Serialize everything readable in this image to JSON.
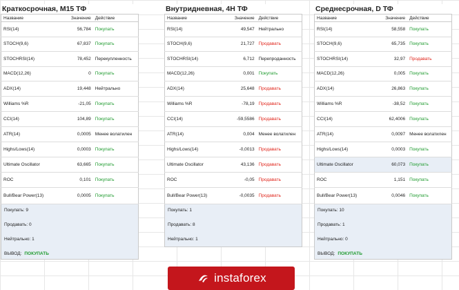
{
  "columns": {
    "name": "Название",
    "value": "Значение",
    "action": "Действие"
  },
  "panels": [
    {
      "title": "Краткосрочная, M15 ТФ",
      "rows": [
        {
          "name": "RSI(14)",
          "value": "56,784",
          "action": "Покупать",
          "kind": "buy"
        },
        {
          "name": "STOCH(9,6)",
          "value": "67,837",
          "action": "Покупать",
          "kind": "buy"
        },
        {
          "name": "STOCHRSI(14)",
          "value": "78,452",
          "action": "Перекупленность",
          "kind": "neutral"
        },
        {
          "name": "MACD(12,26)",
          "value": "0",
          "action": "Покупать",
          "kind": "buy"
        },
        {
          "name": "ADX(14)",
          "value": "19,448",
          "action": "Нейтрально",
          "kind": "neutral"
        },
        {
          "name": "Williams %R",
          "value": "-21,05",
          "action": "Покупать",
          "kind": "buy"
        },
        {
          "name": "CCI(14)",
          "value": "104,89",
          "action": "Покупать",
          "kind": "buy"
        },
        {
          "name": "ATR(14)",
          "value": "0,0005",
          "action": "Менее волатилен",
          "kind": "neutral"
        },
        {
          "name": "Highs/Lows(14)",
          "value": "0,0003",
          "action": "Покупать",
          "kind": "buy"
        },
        {
          "name": "Ultimate Oscillator",
          "value": "63,665",
          "action": "Покупать",
          "kind": "buy"
        },
        {
          "name": "ROC",
          "value": "0,101",
          "action": "Покупать",
          "kind": "buy"
        },
        {
          "name": "Bull/Bear Power(13)",
          "value": "0,0005",
          "action": "Покупать",
          "kind": "buy"
        }
      ],
      "buy": "Покупать: 9",
      "sell": "Продавать: 0",
      "neutral": "Нейтрально: 1",
      "verdict_label": "ВЫВОД:",
      "verdict": "ПОКУПАТЬ"
    },
    {
      "title": "Внутридневная, 4H ТФ",
      "rows": [
        {
          "name": "RSI(14)",
          "value": "49,547",
          "action": "Нейтрально",
          "kind": "neutral"
        },
        {
          "name": "STOCH(9,6)",
          "value": "21,727",
          "action": "Продавать",
          "kind": "sell"
        },
        {
          "name": "STOCHRSI(14)",
          "value": "6,712",
          "action": "Перепроданность",
          "kind": "neutral"
        },
        {
          "name": "MACD(12,26)",
          "value": "0,001",
          "action": "Покупать",
          "kind": "buy"
        },
        {
          "name": "ADX(14)",
          "value": "25,648",
          "action": "Продавать",
          "kind": "sell"
        },
        {
          "name": "Williams %R",
          "value": "-78,19",
          "action": "Продавать",
          "kind": "sell"
        },
        {
          "name": "CCI(14)",
          "value": "-59,5586",
          "action": "Продавать",
          "kind": "sell"
        },
        {
          "name": "ATR(14)",
          "value": "0,004",
          "action": "Менее волатилен",
          "kind": "neutral"
        },
        {
          "name": "Highs/Lows(14)",
          "value": "-0,0013",
          "action": "Продавать",
          "kind": "sell"
        },
        {
          "name": "Ultimate Oscillator",
          "value": "43,136",
          "action": "Продавать",
          "kind": "sell"
        },
        {
          "name": "ROC",
          "value": "-0,05",
          "action": "Продавать",
          "kind": "sell"
        },
        {
          "name": "Bull/Bear Power(13)",
          "value": "-0,0035",
          "action": "Продавать",
          "kind": "sell"
        }
      ],
      "buy": "Покупать: 1",
      "sell": "Продавать: 8",
      "neutral": "Нейтрально: 1",
      "verdict_label": "",
      "verdict": ""
    },
    {
      "title": "Среднесрочная, D ТФ",
      "rows": [
        {
          "name": "RSI(14)",
          "value": "58,558",
          "action": "Покупать",
          "kind": "buy"
        },
        {
          "name": "STOCH(9,6)",
          "value": "65,735",
          "action": "Покупать",
          "kind": "buy"
        },
        {
          "name": "STOCHRSI(14)",
          "value": "32,97",
          "action": "Продавать",
          "kind": "sell"
        },
        {
          "name": "MACD(12,26)",
          "value": "0,005",
          "action": "Покупать",
          "kind": "buy"
        },
        {
          "name": "ADX(14)",
          "value": "26,863",
          "action": "Покупать",
          "kind": "buy"
        },
        {
          "name": "Williams %R",
          "value": "-38,52",
          "action": "Покупать",
          "kind": "buy"
        },
        {
          "name": "CCI(14)",
          "value": "62,4006",
          "action": "Покупать",
          "kind": "buy"
        },
        {
          "name": "ATR(14)",
          "value": "0,0097",
          "action": "Менее волатилен",
          "kind": "neutral"
        },
        {
          "name": "Highs/Lows(14)",
          "value": "0,0003",
          "action": "Покупать",
          "kind": "buy"
        },
        {
          "name": "Ultimate Oscillator",
          "value": "60,073",
          "action": "Покупать",
          "kind": "buy"
        },
        {
          "name": "ROC",
          "value": "1,151",
          "action": "Покупать",
          "kind": "buy"
        },
        {
          "name": "Bull/Bear Power(13)",
          "value": "0,0046",
          "action": "Покупать",
          "kind": "buy"
        }
      ],
      "buy": "Покупать: 10",
      "sell": "Продавать: 1",
      "neutral": "Нейтрально: 0",
      "verdict_label": "ВЫВОД:",
      "verdict": "ПОКУПАТЬ"
    }
  ],
  "watermark": "instaforex",
  "colors": {
    "buy": "#1e9a2e",
    "sell": "#e0241a",
    "highlight": "#e8eef6",
    "brand": "#c4161c"
  }
}
